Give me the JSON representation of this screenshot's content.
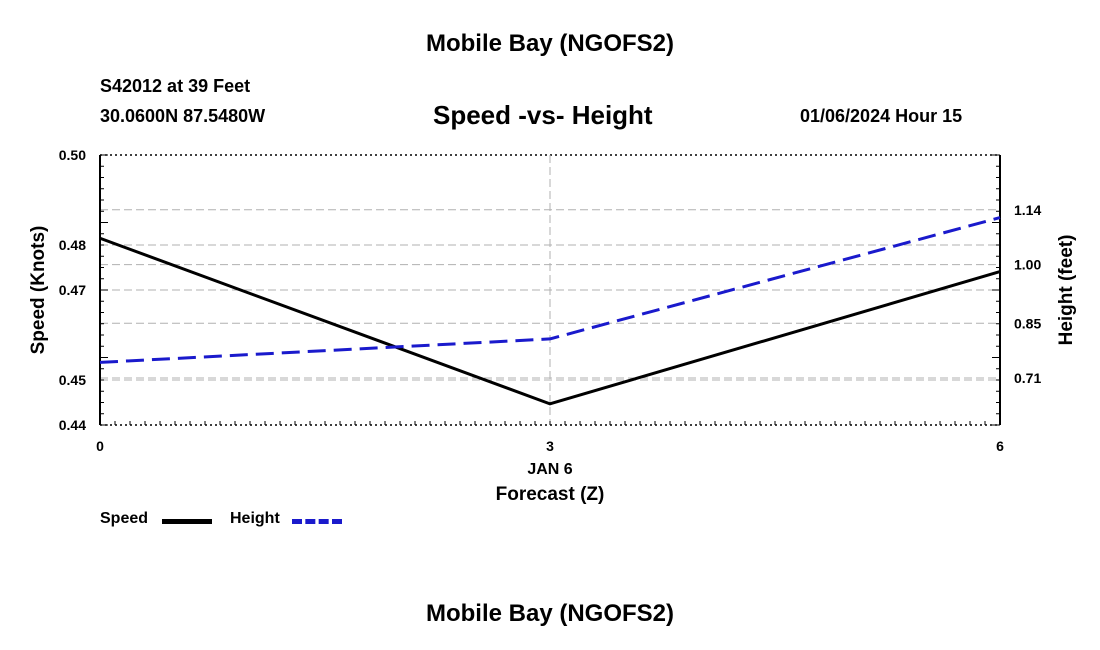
{
  "header": {
    "title": "Mobile Bay (NGOFS2)",
    "station": "S42012 at 39 Feet",
    "coords": "30.0600N  87.5480W",
    "subtitle": "Speed -vs- Height",
    "datetime": "01/06/2024 Hour 15"
  },
  "footer": {
    "title": "Mobile Bay (NGOFS2)"
  },
  "chart_data": {
    "type": "line",
    "x": [
      0,
      3,
      6
    ],
    "xlim": [
      0,
      6
    ],
    "x_ticks": [
      "0",
      "3",
      "6"
    ],
    "x_date_label": "JAN 6",
    "xlabel": "Forecast (Z)",
    "ylabel_left": "Speed (Knots)",
    "ylim_left": [
      0.44,
      0.5
    ],
    "y_ticks_left": [
      {
        "value": 0.44,
        "label": "0.44"
      },
      {
        "value": 0.45,
        "label": "0.45"
      },
      {
        "value": 0.47,
        "label": "0.47"
      },
      {
        "value": 0.48,
        "label": "0.48"
      },
      {
        "value": 0.5,
        "label": "0.50"
      }
    ],
    "ylabel_right": "Height (feet)",
    "ylim_right": [
      0.59,
      1.28
    ],
    "y_ticks_right": [
      {
        "value": 0.71,
        "label": "0.71"
      },
      {
        "value": 0.85,
        "label": "0.85"
      },
      {
        "value": 1.0,
        "label": "1.00"
      },
      {
        "value": 1.14,
        "label": "1.14"
      }
    ],
    "grid": true,
    "series": [
      {
        "name": "Speed",
        "axis": "left",
        "values": [
          0.4815,
          0.4447,
          0.4741
        ],
        "color": "#000000",
        "dash": "solid"
      },
      {
        "name": "Height",
        "axis": "right",
        "values": [
          0.75,
          0.81,
          1.12
        ],
        "color": "#1a1acc",
        "dash": "dashed"
      }
    ],
    "legend_placement": "bottom-left"
  }
}
